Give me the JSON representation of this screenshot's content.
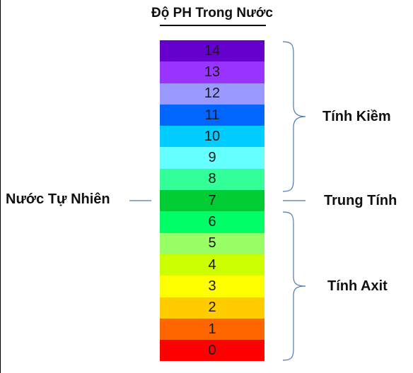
{
  "title": "Độ PH Trong Nước",
  "scale": [
    {
      "value": "14",
      "color": "#6600cc"
    },
    {
      "value": "13",
      "color": "#9933ff"
    },
    {
      "value": "12",
      "color": "#9999ff"
    },
    {
      "value": "11",
      "color": "#0066ff"
    },
    {
      "value": "10",
      "color": "#00ccff"
    },
    {
      "value": "9",
      "color": "#66ffff"
    },
    {
      "value": "8",
      "color": "#33ff99"
    },
    {
      "value": "7",
      "color": "#00cc33"
    },
    {
      "value": "6",
      "color": "#00ff66"
    },
    {
      "value": "5",
      "color": "#99ff66"
    },
    {
      "value": "4",
      "color": "#ccff00"
    },
    {
      "value": "3",
      "color": "#ffff00"
    },
    {
      "value": "2",
      "color": "#ffcc00"
    },
    {
      "value": "1",
      "color": "#ff6600"
    },
    {
      "value": "0",
      "color": "#ff0000"
    }
  ],
  "labels": {
    "natural": "Nước Tự Nhiên",
    "basic": "Tính Kiềm",
    "neutral": "Trung Tính",
    "acidic": "Tính Axit"
  },
  "line_color": "#4a7ab0"
}
